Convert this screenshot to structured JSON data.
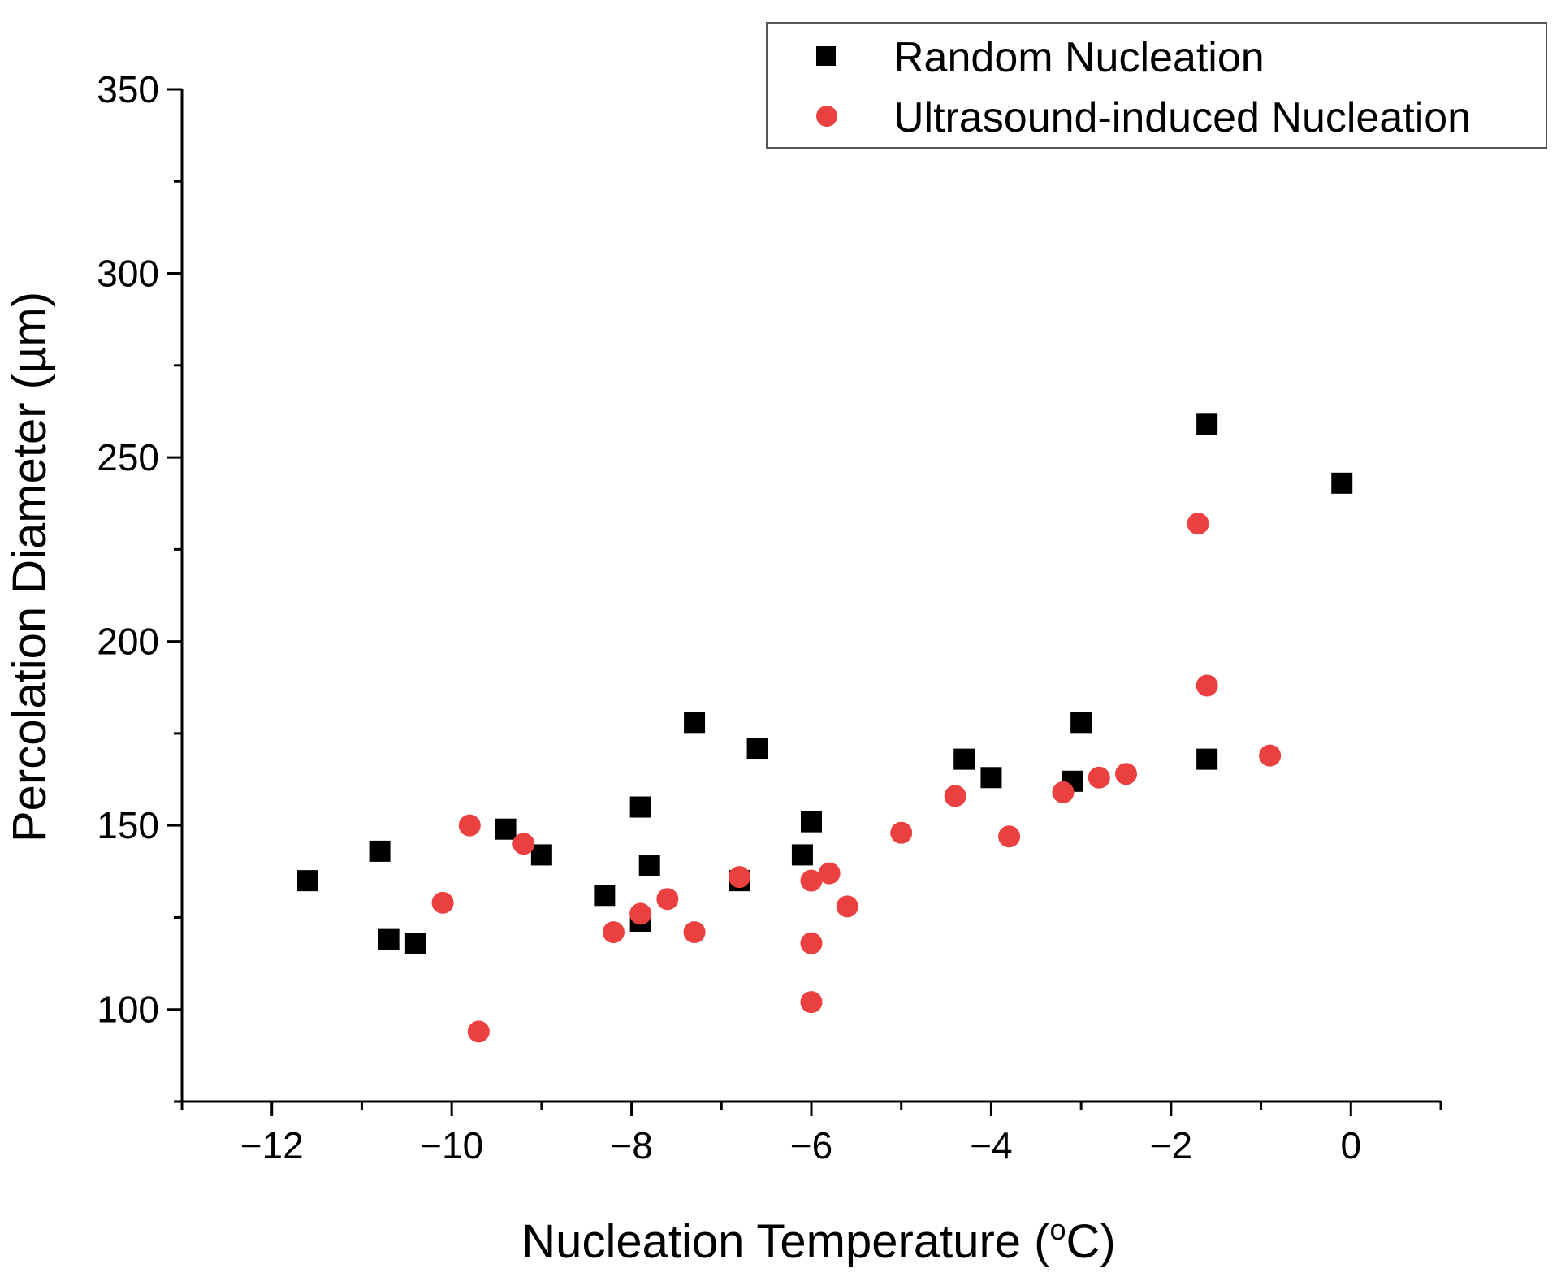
{
  "chart_data": {
    "type": "scatter",
    "title": "",
    "xlabel": "Nucleation Temperature (",
    "xlabel_sup": "o",
    "xlabel_end": "C)",
    "ylabel": "Percolation Diameter (µm)",
    "xlim": [
      -13,
      1
    ],
    "ylim": [
      75,
      350
    ],
    "x_ticks": [
      -12,
      -10,
      -8,
      -6,
      -4,
      -2,
      0
    ],
    "x_tick_labels": [
      "−12",
      "−10",
      "−8",
      "−6",
      "−4",
      "−2",
      "0"
    ],
    "y_ticks": [
      100,
      150,
      200,
      250,
      300,
      350
    ],
    "y_tick_labels": [
      "100",
      "150",
      "200",
      "250",
      "300",
      "350"
    ],
    "grid": false,
    "legend_position": "top-right",
    "series": [
      {
        "name": "Random Nucleation",
        "marker": "square",
        "color": "#000000",
        "points": [
          [
            -11.6,
            135
          ],
          [
            -10.8,
            143
          ],
          [
            -10.7,
            119
          ],
          [
            -10.4,
            118
          ],
          [
            -9.4,
            149
          ],
          [
            -9.0,
            142
          ],
          [
            -8.3,
            131
          ],
          [
            -7.9,
            155
          ],
          [
            -7.9,
            124
          ],
          [
            -7.8,
            139
          ],
          [
            -7.3,
            178
          ],
          [
            -6.8,
            135
          ],
          [
            -6.6,
            171
          ],
          [
            -6.1,
            142
          ],
          [
            -6.0,
            151
          ],
          [
            -4.3,
            168
          ],
          [
            -4.0,
            163
          ],
          [
            -3.1,
            162
          ],
          [
            -3.0,
            178
          ],
          [
            -1.6,
            259
          ],
          [
            -1.6,
            168
          ],
          [
            -0.1,
            243
          ]
        ]
      },
      {
        "name": "Ultrasound-induced Nucleation",
        "marker": "circle",
        "color": "#EB4040",
        "points": [
          [
            -10.1,
            129
          ],
          [
            -9.8,
            150
          ],
          [
            -9.7,
            94
          ],
          [
            -9.2,
            145
          ],
          [
            -8.2,
            121
          ],
          [
            -7.9,
            126
          ],
          [
            -7.6,
            130
          ],
          [
            -7.3,
            121
          ],
          [
            -6.8,
            136
          ],
          [
            -6.0,
            135
          ],
          [
            -6.0,
            118
          ],
          [
            -6.0,
            102
          ],
          [
            -5.8,
            137
          ],
          [
            -5.6,
            128
          ],
          [
            -5.0,
            148
          ],
          [
            -4.4,
            158
          ],
          [
            -3.8,
            147
          ],
          [
            -3.2,
            159
          ],
          [
            -2.8,
            163
          ],
          [
            -2.5,
            164
          ],
          [
            -1.7,
            232
          ],
          [
            -1.6,
            188
          ],
          [
            -0.9,
            169
          ]
        ]
      }
    ]
  }
}
